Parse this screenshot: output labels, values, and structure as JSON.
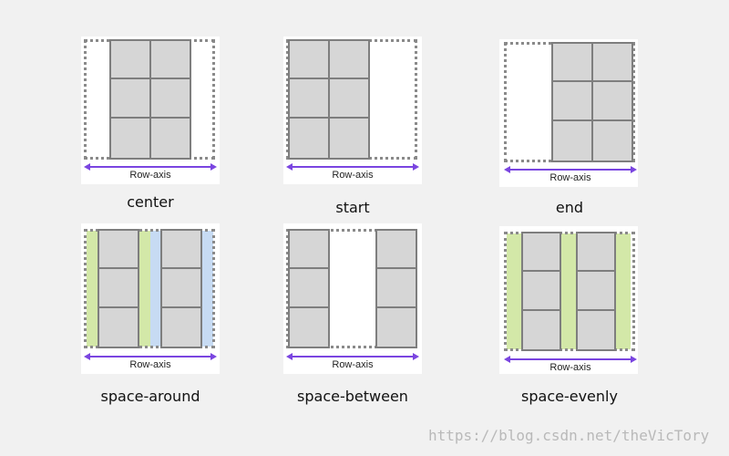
{
  "axis_label": "Row-axis",
  "colors": {
    "track": "#d6d6d6",
    "track_border": "#7e7e7e",
    "container_border": "#8a8a8a",
    "axis": "#7a45e0",
    "green_space": "#d3e8a8",
    "blue_space": "#c7dbf3"
  },
  "diagrams": [
    {
      "id": "center",
      "caption": "center"
    },
    {
      "id": "start",
      "caption": "start"
    },
    {
      "id": "end",
      "caption": "end"
    },
    {
      "id": "space-around",
      "caption": "space-around"
    },
    {
      "id": "space-between",
      "caption": "space-between"
    },
    {
      "id": "space-evenly",
      "caption": "space-evenly"
    }
  ],
  "watermark": "https://blog.csdn.net/theVicTory"
}
